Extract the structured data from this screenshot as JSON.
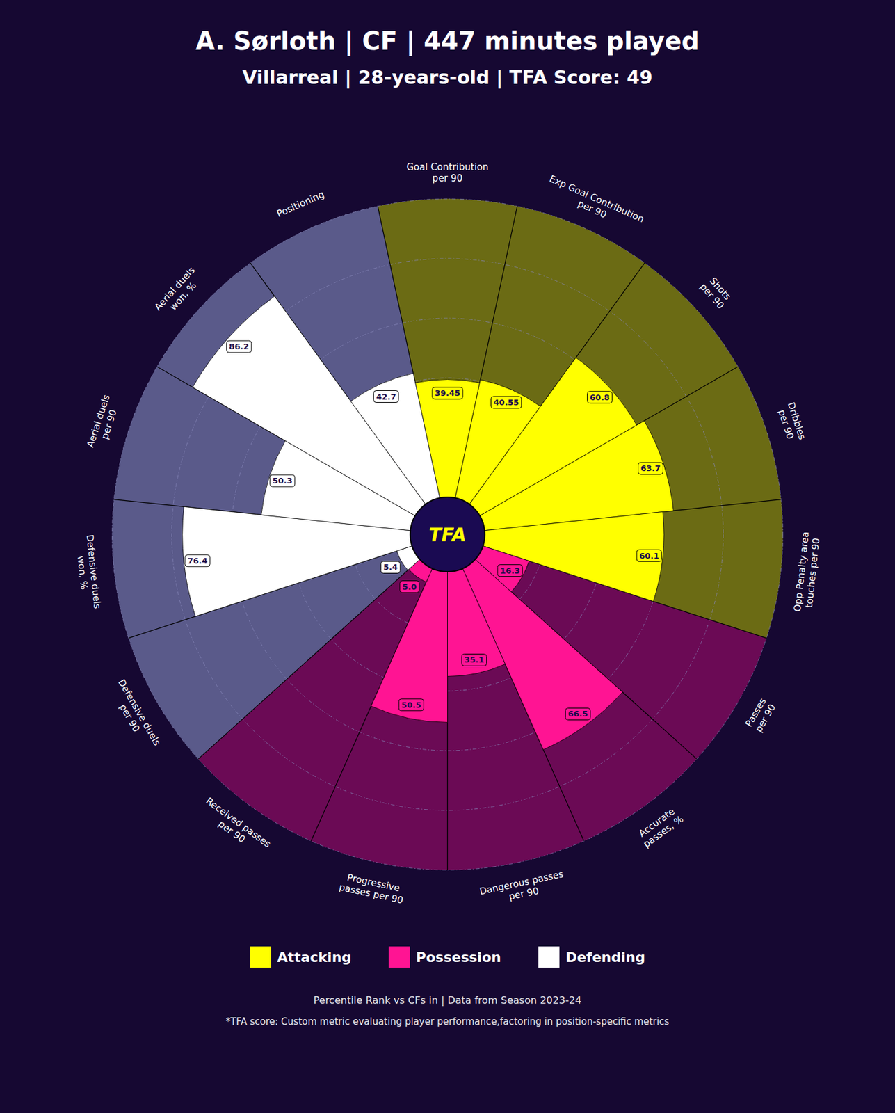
{
  "chart_data": {
    "type": "polar_bar",
    "title": "A. Sørloth | CF | 447 minutes played",
    "subtitle": "Villarreal | 28-years-old | TFA Score: 49",
    "categories": [
      "Goal Contribution\nper 90",
      "Exp Goal Contribution\nper 90",
      "Shots\nper 90",
      "Dribbles\nper 90",
      "Opp Penalty area\ntouches per 90",
      "Passes\nper 90",
      "Accurate\npasses, %",
      "Dangerous passes\nper 90",
      "Progressive\npasses per 90",
      "Received passes\nper 90",
      "Defensive duels\nper 90",
      "Defensive duels\nwon, %",
      "Aerial duels\nper 90",
      "Aerial duels\nwon, %",
      "Positioning"
    ],
    "series": [
      {
        "name": "Attacking",
        "color": "#FFFF00",
        "values": [
          39.45,
          40.55,
          60.8,
          63.7,
          60.1,
          null,
          null,
          null,
          null,
          null,
          null,
          null,
          null,
          null,
          null
        ]
      },
      {
        "name": "Possession",
        "color": "#FF1493",
        "values": [
          null,
          null,
          null,
          null,
          null,
          16.3,
          66.5,
          35.1,
          50.5,
          5.0,
          null,
          null,
          null,
          null,
          null
        ],
        "value_labels": [
          null,
          null,
          null,
          null,
          null,
          "16.3",
          "66.5",
          "35.1",
          "50.5",
          "5.0",
          null,
          null,
          null,
          null,
          null
        ]
      },
      {
        "name": "Defending",
        "color": "#FFFFFF",
        "values": [
          null,
          null,
          null,
          null,
          null,
          null,
          null,
          null,
          null,
          null,
          5.4,
          76.4,
          50.3,
          86.2,
          42.7
        ]
      }
    ],
    "ylim": [
      0,
      100
    ],
    "yticks": [
      20,
      40,
      60,
      80,
      100
    ],
    "grid": true,
    "tick_labels": false,
    "data_labels": true,
    "center_label": "TFA",
    "footnotes": [
      "Percentile Rank vs CFs in | Data from Season 2023-24",
      "*TFA score: Custom metric evaluating player performance,factoring in position-specific metrics"
    ]
  }
}
